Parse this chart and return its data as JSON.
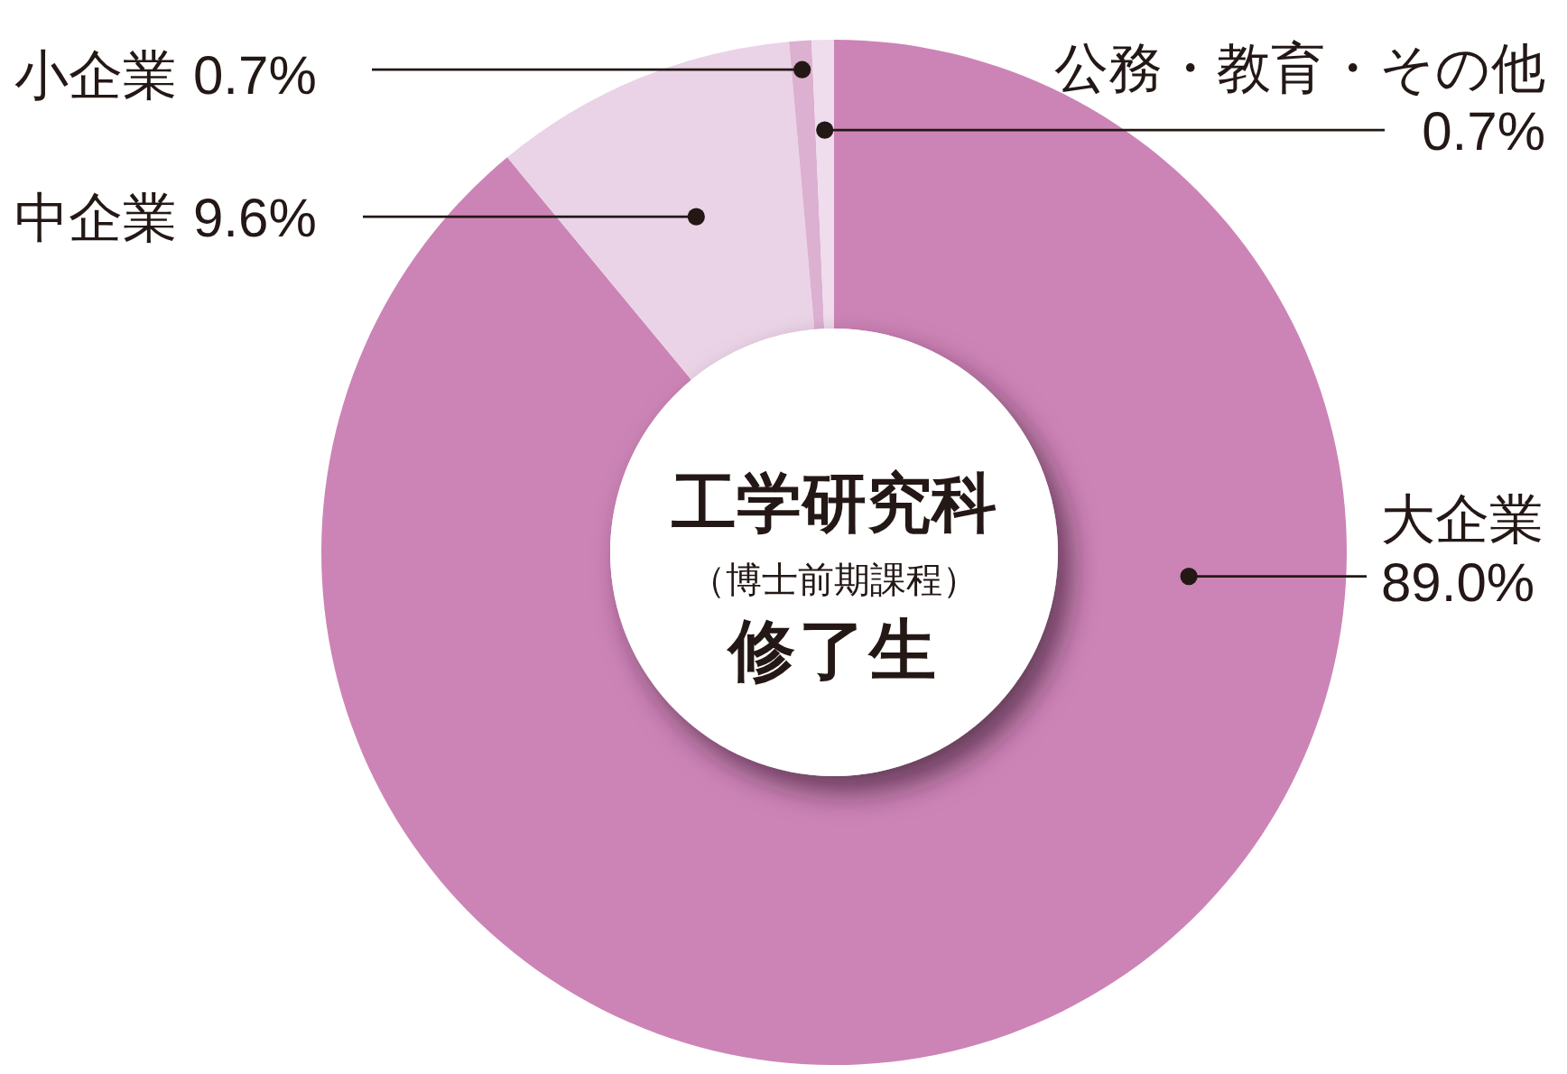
{
  "chart_data": {
    "type": "donut",
    "title": "工学研究科",
    "subtitle": "（博士前期課程）",
    "annotations": [
      "修了生"
    ],
    "categories": [
      "大企業",
      "中企業",
      "小企業",
      "公務・教育・その他"
    ],
    "values": [
      89.0,
      9.6,
      0.7,
      0.7
    ],
    "value_labels": [
      "89.0%",
      "9.6%",
      "0.7%",
      "0.7%"
    ],
    "colors": [
      "#cc84b6",
      "#ead3e6",
      "#dcb0d1",
      "#efdcec"
    ]
  }
}
